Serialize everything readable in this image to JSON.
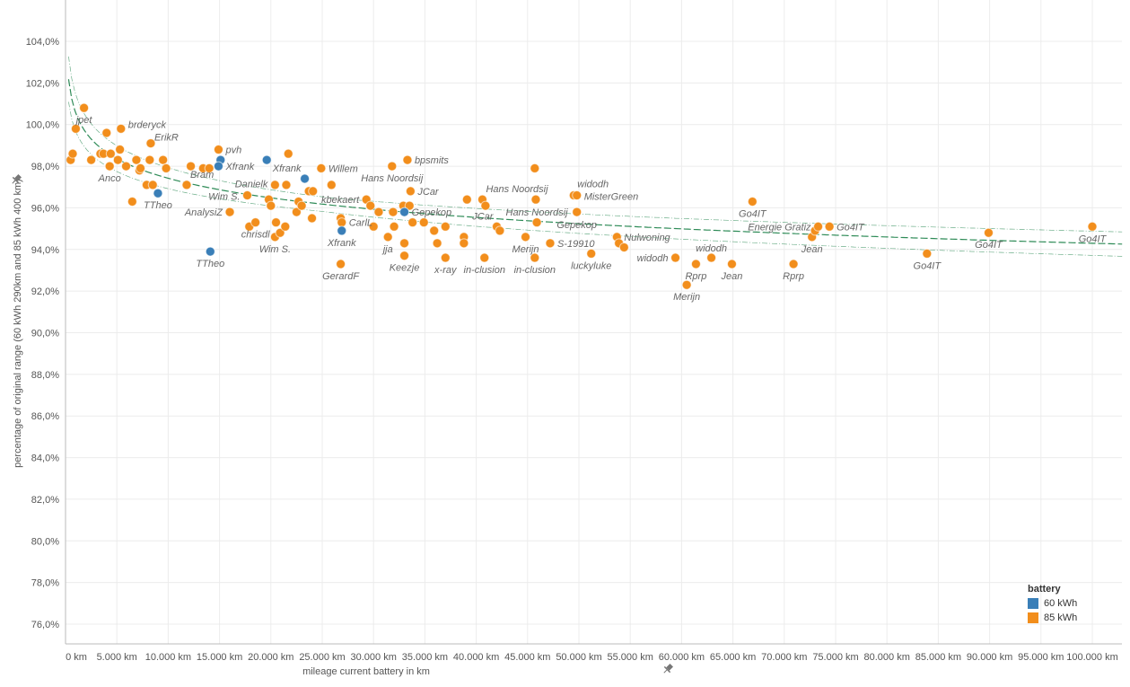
{
  "chart_data": {
    "type": "scatter",
    "title": "",
    "xlabel": "mileage current battery in km",
    "ylabel": "percentage of original range (60 kWh 290km and 85 kWh 400 km)",
    "xlim": [
      0,
      103000
    ],
    "ylim": [
      75.3,
      106
    ],
    "x_ticks": [
      0,
      5000,
      10000,
      15000,
      20000,
      25000,
      30000,
      35000,
      40000,
      45000,
      50000,
      55000,
      60000,
      65000,
      70000,
      75000,
      80000,
      85000,
      90000,
      95000,
      100000
    ],
    "x_tick_labels": [
      "0 km",
      "5.000 km",
      "10.000 km",
      "15.000 km",
      "20.000 km",
      "25.000 km",
      "30.000 km",
      "35.000 km",
      "40.000 km",
      "45.000 km",
      "50.000 km",
      "55.000 km",
      "60.000 km",
      "65.000 km",
      "70.000 km",
      "75.000 km",
      "80.000 km",
      "85.000 km",
      "90.000 km",
      "95.000 km",
      "100.000 km"
    ],
    "y_ticks": [
      76,
      78,
      80,
      82,
      84,
      86,
      88,
      90,
      92,
      94,
      96,
      98,
      100,
      102,
      104
    ],
    "y_tick_labels": [
      "76,0%",
      "78,0%",
      "80,0%",
      "82,0%",
      "84,0%",
      "86,0%",
      "88,0%",
      "90,0%",
      "92,0%",
      "94,0%",
      "96,0%",
      "98,0%",
      "100,0%",
      "102,0%",
      "104,0%"
    ],
    "grid": true,
    "legend": {
      "title": "battery",
      "placement": "bottom-right",
      "entries": [
        {
          "name": "60 kWh",
          "color": "#3a7fb8"
        },
        {
          "name": "85 kWh",
          "color": "#f28e1c"
        }
      ]
    },
    "trend": {
      "model": "logarithmic",
      "a": 109.92,
      "b": 1.357,
      "band": 0.35,
      "color": "#2e8b57"
    },
    "fields": [
      "km",
      "pct",
      "battery",
      "label",
      "label_pos"
    ],
    "points": [
      [
        500,
        98.3,
        "85",
        null,
        null
      ],
      [
        700,
        98.6,
        "85",
        null,
        null
      ],
      [
        1000,
        99.8,
        "85",
        null,
        null
      ],
      [
        1800,
        100.8,
        "85",
        "jpet",
        "below"
      ],
      [
        2500,
        98.3,
        "85",
        null,
        null
      ],
      [
        3400,
        98.6,
        "85",
        null,
        null
      ],
      [
        3700,
        98.6,
        "85",
        null,
        null
      ],
      [
        4300,
        98.0,
        "85",
        "Anco",
        "below"
      ],
      [
        4400,
        98.6,
        "85",
        null,
        null
      ],
      [
        4000,
        99.6,
        "85",
        null,
        null
      ],
      [
        5100,
        98.3,
        "85",
        null,
        null
      ],
      [
        5300,
        98.8,
        "85",
        null,
        null
      ],
      [
        5400,
        99.8,
        "85",
        "brderyck",
        "right"
      ],
      [
        5900,
        98.0,
        "85",
        null,
        null
      ],
      [
        6900,
        98.3,
        "85",
        null,
        null
      ],
      [
        7200,
        97.8,
        "85",
        null,
        null
      ],
      [
        7300,
        97.9,
        "85",
        null,
        null
      ],
      [
        7900,
        97.1,
        "85",
        null,
        null
      ],
      [
        8200,
        98.3,
        "85",
        null,
        null
      ],
      [
        8300,
        99.1,
        "85",
        "ErikR",
        "above-right"
      ],
      [
        8500,
        97.1,
        "85",
        null,
        null
      ],
      [
        9500,
        98.3,
        "85",
        null,
        null
      ],
      [
        9800,
        97.9,
        "85",
        null,
        null
      ],
      [
        6500,
        96.3,
        "85",
        null,
        null
      ],
      [
        9000,
        96.7,
        "60",
        "TTheo",
        "below"
      ],
      [
        11800,
        97.1,
        "85",
        "Bram",
        "above-right"
      ],
      [
        12200,
        98.0,
        "85",
        null,
        null
      ],
      [
        13400,
        97.9,
        "85",
        null,
        null
      ],
      [
        14000,
        97.9,
        "85",
        null,
        null
      ],
      [
        14900,
        98.8,
        "85",
        "pvh",
        "right"
      ],
      [
        15100,
        98.3,
        "60",
        null,
        null
      ],
      [
        14900,
        98.0,
        "60",
        "Xfrank",
        "right"
      ],
      [
        14100,
        93.9,
        "60",
        "TTheo",
        "below"
      ],
      [
        16000,
        95.8,
        "85",
        "AnalysiZ",
        "left"
      ],
      [
        17700,
        96.6,
        "85",
        "Wim S.",
        "left"
      ],
      [
        17900,
        95.1,
        "85",
        null,
        null
      ],
      [
        18500,
        95.3,
        "85",
        "chrisdl",
        "below"
      ],
      [
        20400,
        97.1,
        "85",
        "Danielk",
        "left"
      ],
      [
        21500,
        97.1,
        "85",
        null,
        null
      ],
      [
        19600,
        98.3,
        "60",
        null,
        null
      ],
      [
        21700,
        98.6,
        "85",
        null,
        null
      ],
      [
        20500,
        95.3,
        "85",
        null,
        null
      ],
      [
        20400,
        94.6,
        "85",
        "Wim S.",
        "below"
      ],
      [
        20900,
        94.8,
        "85",
        null,
        null
      ],
      [
        21400,
        95.1,
        "85",
        null,
        null
      ],
      [
        19800,
        96.4,
        "85",
        null,
        null
      ],
      [
        20000,
        96.1,
        "85",
        null,
        null
      ],
      [
        22500,
        95.8,
        "85",
        null,
        null
      ],
      [
        22700,
        96.3,
        "85",
        null,
        null
      ],
      [
        23000,
        96.1,
        "85",
        null,
        null
      ],
      [
        23700,
        96.8,
        "85",
        null,
        null
      ],
      [
        24100,
        96.8,
        "85",
        null,
        null
      ],
      [
        24000,
        95.5,
        "85",
        null,
        null
      ],
      [
        23300,
        97.4,
        "60",
        "Xfrank",
        "above-left"
      ],
      [
        24900,
        97.9,
        "85",
        "Willem",
        "right"
      ],
      [
        25900,
        97.1,
        "85",
        null,
        null
      ],
      [
        26800,
        95.5,
        "85",
        null,
        null
      ],
      [
        26900,
        95.3,
        "85",
        "CarlL",
        "right"
      ],
      [
        26900,
        94.9,
        "60",
        "Xfrank",
        "below"
      ],
      [
        26800,
        93.3,
        "85",
        "GerardF",
        "below"
      ],
      [
        29300,
        96.4,
        "85",
        "kbekaert",
        "left"
      ],
      [
        29700,
        96.1,
        "85",
        null,
        null
      ],
      [
        30500,
        95.8,
        "85",
        null,
        null
      ],
      [
        30000,
        95.1,
        "85",
        null,
        null
      ],
      [
        31400,
        94.6,
        "85",
        "jja",
        "below"
      ],
      [
        31800,
        98.0,
        "85",
        "Hans Noordsij",
        "below"
      ],
      [
        31900,
        95.8,
        "85",
        null,
        null
      ],
      [
        32000,
        95.1,
        "85",
        null,
        null
      ],
      [
        33000,
        94.3,
        "85",
        null,
        null
      ],
      [
        33000,
        93.7,
        "85",
        "Keezje",
        "below"
      ],
      [
        33300,
        98.3,
        "85",
        "bpsmits",
        "right"
      ],
      [
        33600,
        96.8,
        "85",
        "JCar",
        "right"
      ],
      [
        32900,
        96.1,
        "85",
        null,
        null
      ],
      [
        33500,
        96.1,
        "85",
        null,
        null
      ],
      [
        33000,
        95.8,
        "60",
        "Gepekop",
        "right"
      ],
      [
        33800,
        95.3,
        "85",
        null,
        null
      ],
      [
        34900,
        95.3,
        "85",
        null,
        null
      ],
      [
        35900,
        94.9,
        "85",
        null,
        null
      ],
      [
        36200,
        94.3,
        "85",
        null,
        null
      ],
      [
        37000,
        95.1,
        "85",
        null,
        null
      ],
      [
        37000,
        93.6,
        "85",
        "x-ray",
        "below"
      ],
      [
        38800,
        94.6,
        "85",
        null,
        null
      ],
      [
        38800,
        94.3,
        "85",
        null,
        null
      ],
      [
        39100,
        96.4,
        "85",
        null,
        null
      ],
      [
        40600,
        96.4,
        "85",
        "Hans Noordsij",
        "above-right"
      ],
      [
        40900,
        96.1,
        "85",
        null,
        null
      ],
      [
        40800,
        93.6,
        "85",
        "in-clusion",
        "below"
      ],
      [
        42000,
        95.1,
        "85",
        "JCar",
        "above-left"
      ],
      [
        42300,
        94.9,
        "85",
        null,
        null
      ],
      [
        44800,
        94.6,
        "85",
        "Merijn",
        "below"
      ],
      [
        45700,
        97.9,
        "85",
        null,
        null
      ],
      [
        45800,
        96.4,
        "85",
        null,
        null
      ],
      [
        45900,
        95.3,
        "85",
        "Hans Noordsij",
        "above"
      ],
      [
        45700,
        93.6,
        "85",
        "in-clusion",
        "below"
      ],
      [
        47200,
        94.3,
        "85",
        "S-19910",
        "right"
      ],
      [
        49500,
        96.6,
        "85",
        "widodh",
        "above-right"
      ],
      [
        49800,
        96.6,
        "85",
        "MisterGreen",
        "right"
      ],
      [
        49800,
        95.8,
        "85",
        "Gepekop",
        "below"
      ],
      [
        51200,
        93.8,
        "85",
        "luckyluke",
        "below"
      ],
      [
        53700,
        94.6,
        "85",
        "Nulwoning",
        "right"
      ],
      [
        53900,
        94.3,
        "85",
        null,
        null
      ],
      [
        54400,
        94.1,
        "85",
        null,
        null
      ],
      [
        59400,
        93.6,
        "85",
        "widodh",
        "left"
      ],
      [
        61400,
        93.3,
        "85",
        "Rprp",
        "below"
      ],
      [
        60500,
        92.3,
        "85",
        "Merijn",
        "below"
      ],
      [
        62900,
        93.6,
        "85",
        "widodh",
        "above"
      ],
      [
        64900,
        93.3,
        "85",
        "Jean",
        "below"
      ],
      [
        66900,
        96.3,
        "85",
        "Go4IT",
        "below"
      ],
      [
        70900,
        93.3,
        "85",
        "Rprp",
        "below"
      ],
      [
        72700,
        94.6,
        "85",
        "Jean",
        "below"
      ],
      [
        73000,
        94.9,
        "85",
        null,
        null
      ],
      [
        73300,
        95.1,
        "85",
        "Energie Gratiz",
        "left"
      ],
      [
        74400,
        95.1,
        "85",
        "Go4IT",
        "right"
      ],
      [
        83900,
        93.8,
        "85",
        "Go4IT",
        "below"
      ],
      [
        89900,
        94.8,
        "85",
        "Go4IT",
        "below"
      ],
      [
        100000,
        95.1,
        "85",
        "Go4IT",
        "below"
      ]
    ]
  }
}
